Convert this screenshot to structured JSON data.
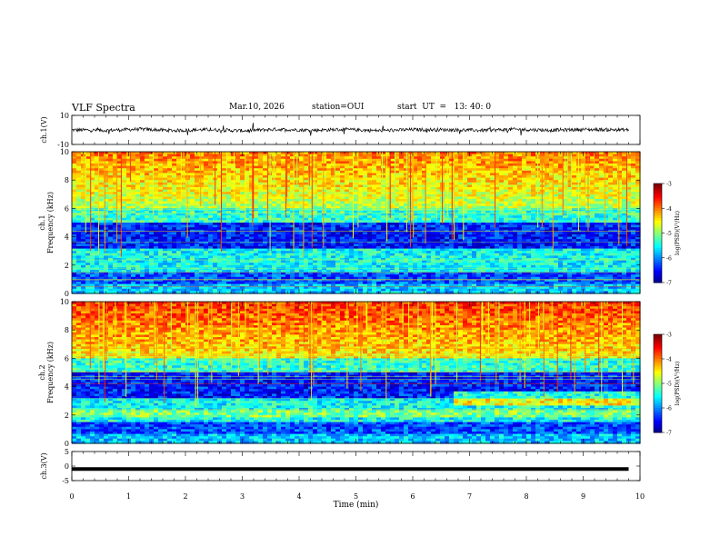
{
  "header": {
    "title": "VLF Spectra",
    "date": "Mar.10, 2026",
    "station": "station=OUI",
    "start": "start  UT  =   13: 40: 0"
  },
  "chart_data": [
    {
      "type": "line",
      "panel": "waveform-ch1",
      "ylabel": "ch.1(V)",
      "ylim": [
        -10,
        10
      ],
      "yticks": [
        "10",
        "-10"
      ],
      "x": [
        0,
        0.6,
        1.2,
        1.8,
        2.4,
        3.0,
        3.6,
        4.2,
        4.8,
        5.4,
        6.0,
        6.6,
        7.2,
        7.8,
        8.4,
        9.0,
        9.8
      ],
      "values": [
        0,
        -0.3,
        0.5,
        -0.4,
        0.2,
        -0.6,
        0.4,
        -0.2,
        0.3,
        -0.5,
        0.2,
        0.1,
        -0.3,
        0.4,
        -0.2,
        0.3,
        0
      ]
    },
    {
      "type": "heatmap",
      "panel": "spectrogram-ch1",
      "ylabel": "ch.1\nFrequency (kHz)",
      "ylim": [
        0,
        10
      ],
      "yticks": [
        "0",
        "2",
        "4",
        "6",
        "8",
        "10"
      ],
      "colorbar": {
        "label": "log(PSD)(V²/Hz)",
        "ticks": [
          "-3",
          "-4",
          "-5",
          "-6",
          "-7"
        ],
        "range": [
          -7,
          -3
        ]
      }
    },
    {
      "type": "heatmap",
      "panel": "spectrogram-ch2",
      "ylabel": "ch.2\nFrequency (kHz)",
      "ylim": [
        0,
        10
      ],
      "yticks": [
        "0",
        "2",
        "4",
        "6",
        "8",
        "10"
      ],
      "colorbar": {
        "label": "log(PSD)(V²/Hz)",
        "ticks": [
          "-3",
          "-4",
          "-5",
          "-6",
          "-7"
        ],
        "range": [
          -7,
          -3
        ]
      }
    },
    {
      "type": "line",
      "panel": "waveform-ch3",
      "ylabel": "ch.3(V)",
      "ylim": [
        -5,
        5
      ],
      "yticks": [
        "5",
        "0",
        "-5"
      ],
      "x": [
        0,
        9.8
      ],
      "values": [
        -1,
        -1
      ]
    }
  ],
  "xaxis": {
    "label": "Time (min)",
    "ticks": [
      "0",
      "1",
      "2",
      "3",
      "4",
      "5",
      "6",
      "7",
      "8",
      "9",
      "10"
    ],
    "range": [
      0,
      10
    ]
  }
}
